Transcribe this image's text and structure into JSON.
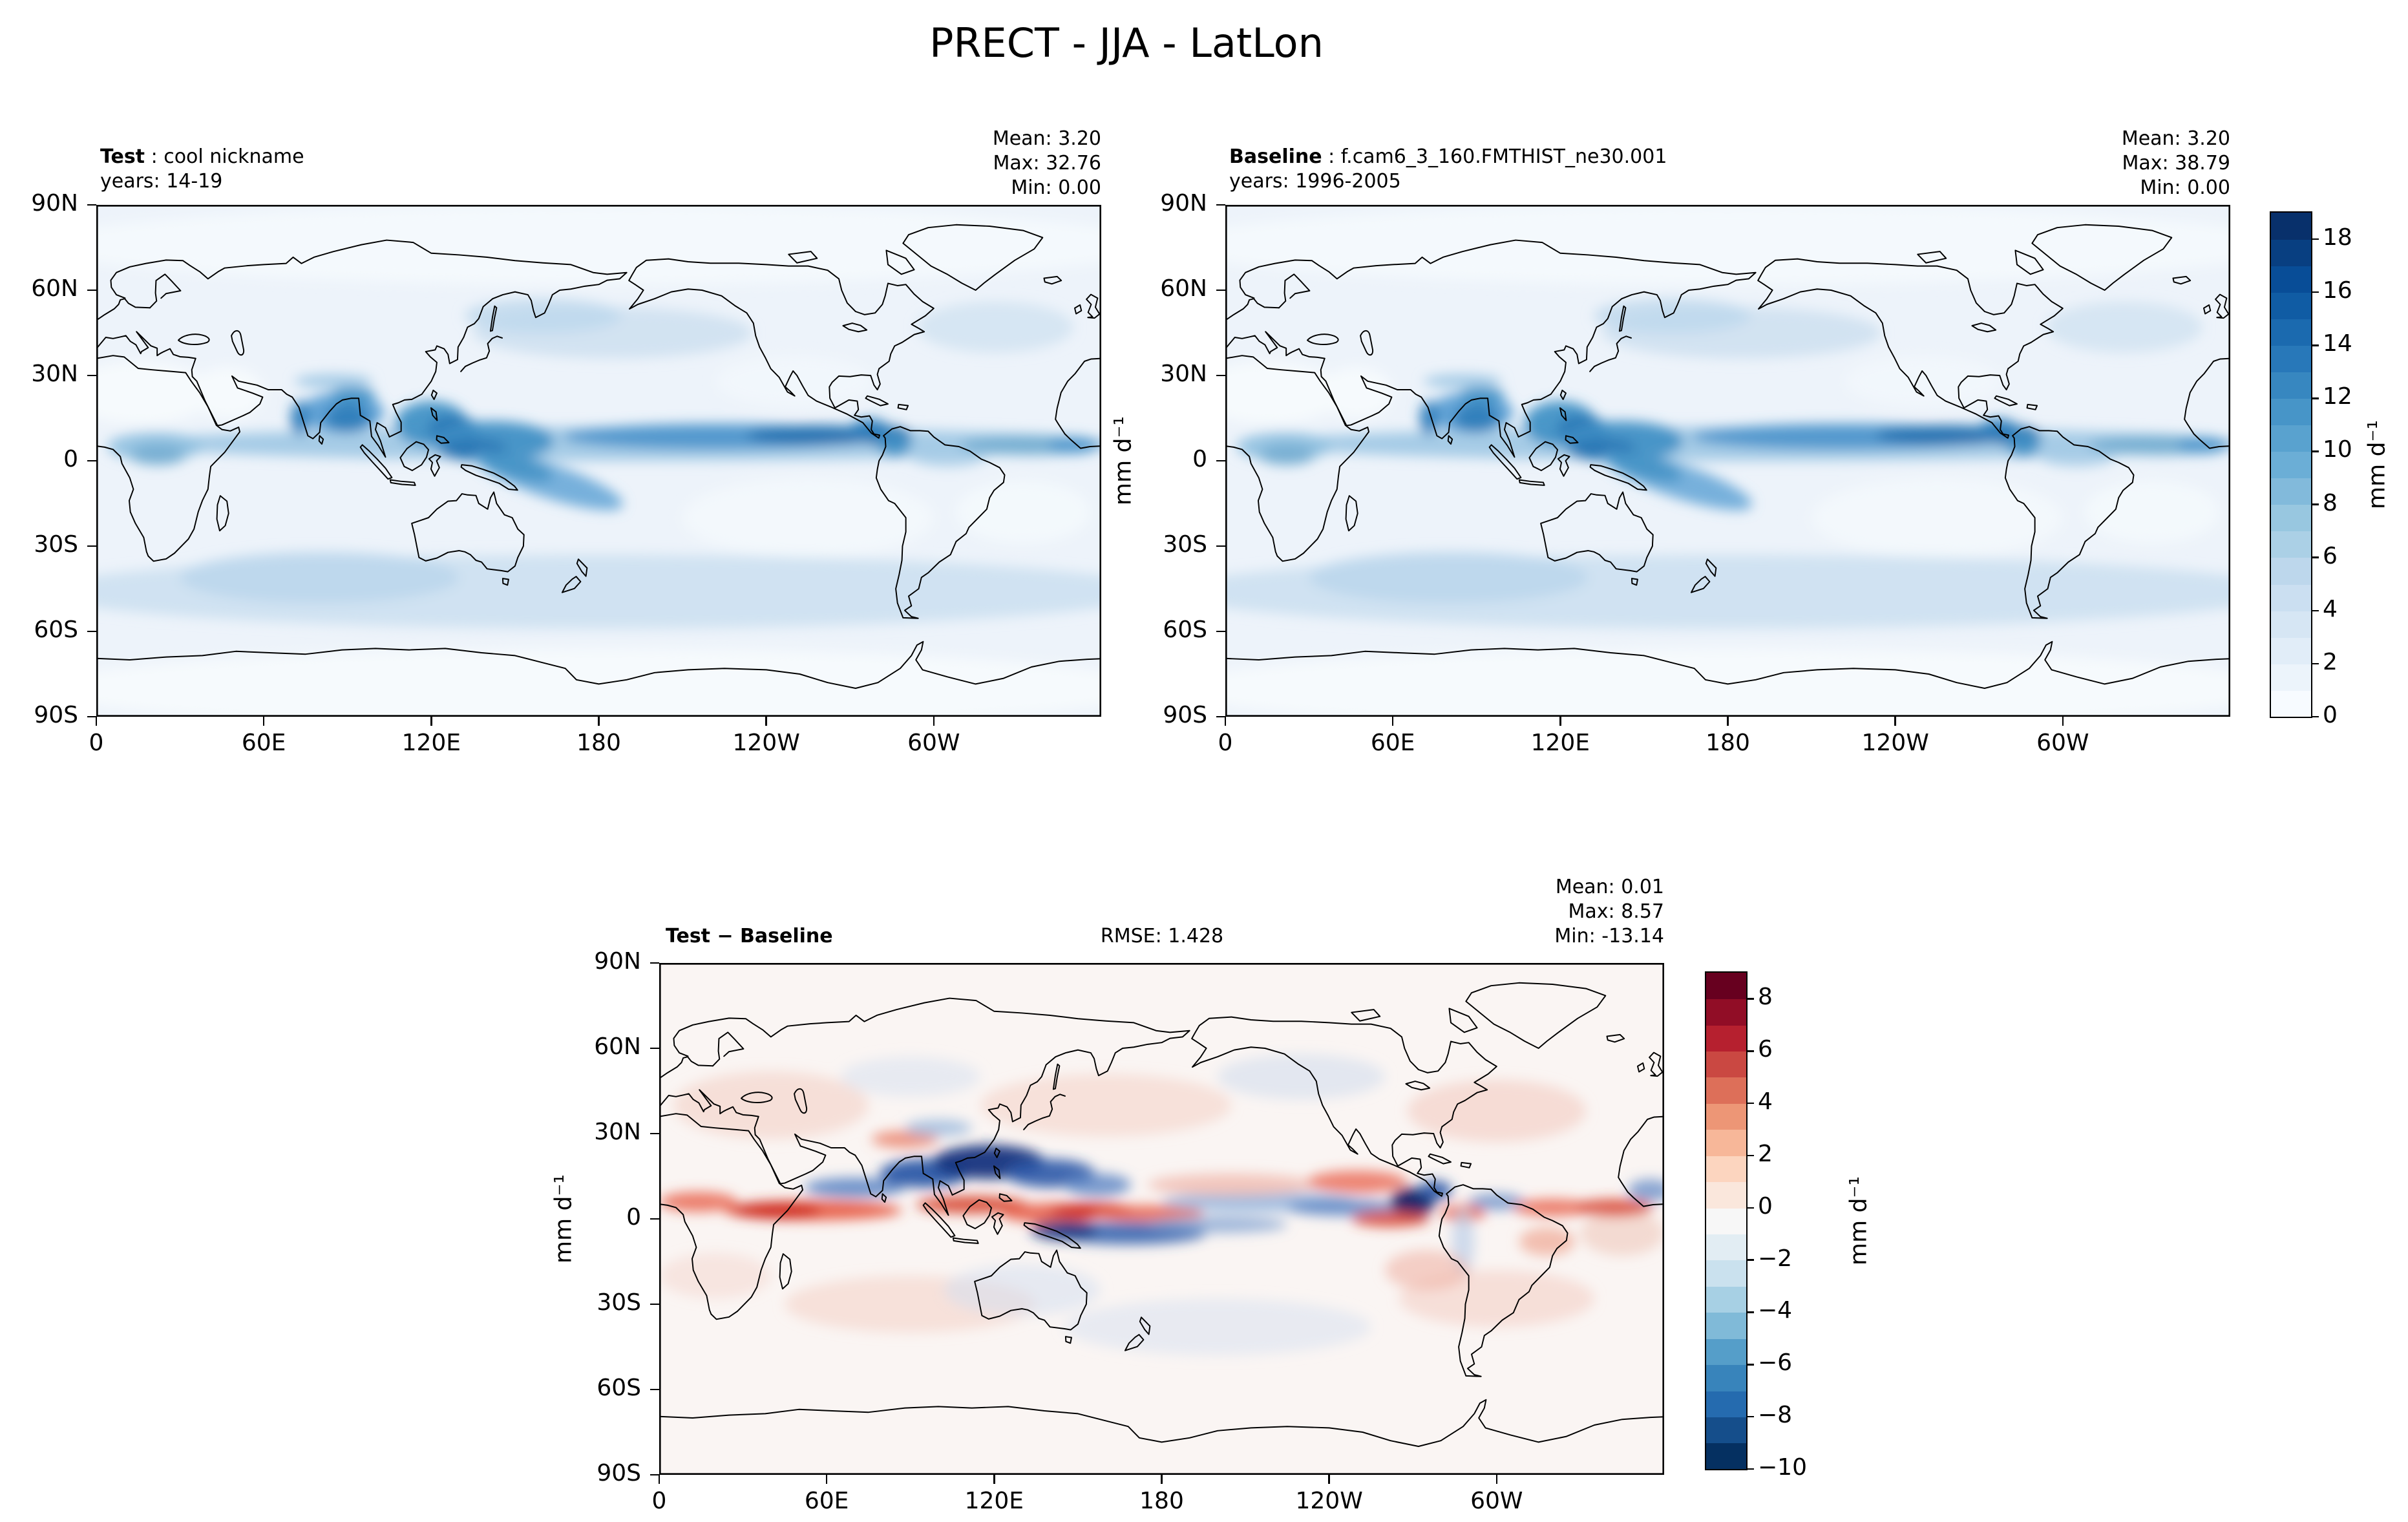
{
  "figure": {
    "title": "PRECT - JJA - LatLon",
    "background": "#ffffff"
  },
  "panels": {
    "test": {
      "label_bold": "Test",
      "label_rest": " : cool nickname",
      "years": "years: 14-19",
      "stats": [
        "Mean:  3.20",
        "Max: 32.76",
        "Min:  0.00"
      ]
    },
    "baseline": {
      "label_bold": "Baseline",
      "label_rest": " : f.cam6_3_160.FMTHIST_ne30.001",
      "years": "years: 1996-2005",
      "stats": [
        "Mean:  3.20",
        "Max: 38.79",
        "Min:  0.00"
      ]
    },
    "diff": {
      "label": "Test − Baseline",
      "rmse": "RMSE: 1.428",
      "stats": [
        "Mean:  0.01",
        "Max:  8.57",
        "Min: -13.14"
      ]
    }
  },
  "axes": {
    "lat_ticks": [
      "90N",
      "60N",
      "30N",
      "0",
      "30S",
      "60S",
      "90S"
    ],
    "lon_ticks": [
      "0",
      "60E",
      "120E",
      "180",
      "120W",
      "60W"
    ],
    "unit_label": "mm d⁻¹"
  },
  "colorbars": {
    "precip": {
      "range": [
        0,
        19
      ],
      "step": 1,
      "tick_values": [
        0,
        2,
        4,
        6,
        8,
        10,
        12,
        14,
        16,
        18
      ],
      "anchors": [
        "#f7fbff",
        "#deebf7",
        "#c6dbef",
        "#9ecae1",
        "#6baed6",
        "#4292c6",
        "#2171b5",
        "#08519c",
        "#08306b"
      ],
      "label": "mm d⁻¹"
    },
    "diff": {
      "range": [
        -10,
        9
      ],
      "step": 1,
      "tick_values": [
        -10,
        -8,
        -6,
        -4,
        -2,
        0,
        2,
        4,
        6,
        8
      ],
      "anchors": [
        "#053061",
        "#2166ac",
        "#4393c3",
        "#92c5de",
        "#d1e5f0",
        "#f7f7f7",
        "#fddbc7",
        "#f4a582",
        "#d6604d",
        "#b2182b",
        "#67001f"
      ],
      "label": "mm d⁻¹"
    }
  },
  "chart_data": {
    "type": "heatmap",
    "title": "PRECT - JJA - LatLon",
    "variable": "PRECT",
    "season": "JJA",
    "projection": "LatLon",
    "units": "mm d⁻¹",
    "x_axis": {
      "tick_labels": [
        "0",
        "60E",
        "120E",
        "180",
        "120W",
        "60W"
      ],
      "range_deg_lon": [
        0,
        360
      ]
    },
    "y_axis": {
      "tick_labels": [
        "90N",
        "60N",
        "30N",
        "0",
        "30S",
        "60S",
        "90S"
      ],
      "range_deg_lat": [
        90,
        -90
      ]
    },
    "panels": [
      {
        "name": "Test",
        "description": "cool nickname",
        "years": "14-19",
        "mean": 3.2,
        "max": 32.76,
        "min": 0.0,
        "colormap": "Blues",
        "levels": {
          "min": 0,
          "max": 19,
          "step": 1
        },
        "colorbar_ticks": [
          0,
          2,
          4,
          6,
          8,
          10,
          12,
          14,
          16,
          18
        ]
      },
      {
        "name": "Baseline",
        "description": "f.cam6_3_160.FMTHIST_ne30.001",
        "years": "1996-2005",
        "mean": 3.2,
        "max": 38.79,
        "min": 0.0,
        "colormap": "Blues",
        "levels": {
          "min": 0,
          "max": 19,
          "step": 1
        },
        "colorbar_ticks": [
          0,
          2,
          4,
          6,
          8,
          10,
          12,
          14,
          16,
          18
        ]
      },
      {
        "name": "Test − Baseline",
        "rmse": 1.428,
        "mean": 0.01,
        "max": 8.57,
        "min": -13.14,
        "colormap": "RdBu_r",
        "levels": {
          "min": -10,
          "max": 9,
          "step": 1
        },
        "colorbar_ticks": [
          -10,
          -8,
          -6,
          -4,
          -2,
          0,
          2,
          4,
          6,
          8
        ]
      }
    ]
  }
}
